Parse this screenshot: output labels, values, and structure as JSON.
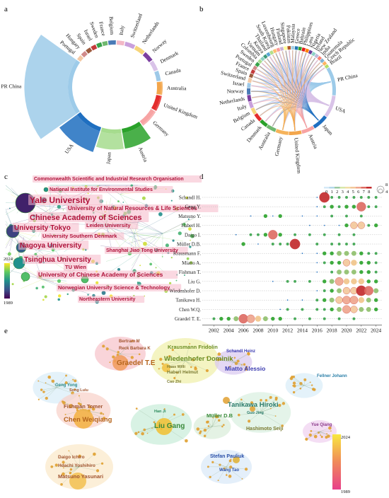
{
  "panels": {
    "a": {
      "letter": "a",
      "countries": [
        {
          "name": "Belgium",
          "color": "#4a7bb7",
          "w": 3
        },
        {
          "name": "Italy",
          "color": "#f2b8c6",
          "w": 3
        },
        {
          "name": "Switzerland",
          "color": "#c9a0dc",
          "w": 4
        },
        {
          "name": "Netherlands",
          "color": "#f6d57a",
          "w": 4
        },
        {
          "name": "Norway",
          "color": "#7b3fa0",
          "w": 4
        },
        {
          "name": "Denmark",
          "color": "#d9c3e8",
          "w": 4
        },
        {
          "name": "Canada",
          "color": "#9ec9e8",
          "w": 4
        },
        {
          "name": "Australia",
          "color": "#f3a64b",
          "w": 5
        },
        {
          "name": "United Kingdom",
          "color": "#e42d2d",
          "w": 6
        },
        {
          "name": "Germany",
          "color": "#f7a3a3",
          "w": 7
        },
        {
          "name": "Austria",
          "color": "#2aa22a",
          "w": 8
        },
        {
          "name": "Japan",
          "color": "#a6dc8e",
          "w": 8
        },
        {
          "name": "USA",
          "color": "#1f6fc0",
          "w": 11
        },
        {
          "name": "PR China",
          "color": "#9dcbe9",
          "w": 22
        },
        {
          "name": "Portugal",
          "color": "#f3c9a5",
          "w": 2
        },
        {
          "name": "Hungary",
          "color": "#d18a8a",
          "w": 2
        },
        {
          "name": "Spain",
          "color": "#9c5a3c",
          "w": 2
        },
        {
          "name": "Israel",
          "color": "#c43b3b",
          "w": 2
        },
        {
          "name": "Sweden",
          "color": "#37a24a",
          "w": 2
        },
        {
          "name": "France",
          "color": "#6fb86f",
          "w": 2
        }
      ]
    },
    "b": {
      "letter": "b",
      "countries": [
        {
          "name": "PR China",
          "color": "#9dcbe9",
          "w": 9
        },
        {
          "name": "USA",
          "color": "#d9c3e8",
          "w": 7
        },
        {
          "name": "Japan",
          "color": "#1f6fc0",
          "w": 5
        },
        {
          "name": "Austria",
          "color": "#f7a3a3",
          "w": 4
        },
        {
          "name": "United Kingdom",
          "color": "#f3a64b",
          "w": 4
        },
        {
          "name": "Germany",
          "color": "#f6b35a",
          "w": 4
        },
        {
          "name": "Australia",
          "color": "#6fb86f",
          "w": 3
        },
        {
          "name": "Denmark",
          "color": "#2aa22a",
          "w": 2.5
        },
        {
          "name": "Canada",
          "color": "#e42d2d",
          "w": 2.5
        },
        {
          "name": "Belgium",
          "color": "#f6d57a",
          "w": 2
        },
        {
          "name": "Italy",
          "color": "#c9a0dc",
          "w": 2
        },
        {
          "name": "Netherlands",
          "color": "#7b3fa0",
          "w": 2
        },
        {
          "name": "Norway",
          "color": "#4a7bb7",
          "w": 2
        },
        {
          "name": "Israel",
          "color": "#9ec9e8",
          "w": 1.5
        },
        {
          "name": "Switzerland",
          "color": "#f3c9a5",
          "w": 1.5
        },
        {
          "name": "Spain",
          "color": "#9c5a3c",
          "w": 1.2
        },
        {
          "name": "France",
          "color": "#c43b3b",
          "w": 1.2
        },
        {
          "name": "Portugal",
          "color": "#d18a8a",
          "w": 1.2
        },
        {
          "name": "Sweden",
          "color": "#37a24a",
          "w": 1.2
        },
        {
          "name": "Colombia",
          "color": "#a6dc8e",
          "w": 1
        },
        {
          "name": "Vietnam",
          "color": "#8fd0c4",
          "w": 1
        },
        {
          "name": "Kenya",
          "color": "#3a9a7a",
          "w": 1
        },
        {
          "name": "Thailand",
          "color": "#5aa6d6",
          "w": 1
        },
        {
          "name": "South Korea",
          "color": "#b2df8a",
          "w": 1
        },
        {
          "name": "Luxembourg",
          "color": "#fdbf6f",
          "w": 1
        },
        {
          "name": "Hungary",
          "color": "#fb9a99",
          "w": 1
        },
        {
          "name": "Finland",
          "color": "#cab2d6",
          "w": 1
        },
        {
          "name": "Singapore",
          "color": "#ffff99",
          "w": 1
        },
        {
          "name": "Pakistan",
          "color": "#b15928",
          "w": 1
        },
        {
          "name": "Malaysia",
          "color": "#a6cee3",
          "w": 1
        },
        {
          "name": "Greece",
          "color": "#1f78b4",
          "w": 1
        },
        {
          "name": "Bahrain",
          "color": "#33a02c",
          "w": 1
        },
        {
          "name": "Philippines",
          "color": "#e31a1c",
          "w": 1
        },
        {
          "name": "Laos",
          "color": "#ff7f00",
          "w": 1
        },
        {
          "name": "Nigeria",
          "color": "#6a3d9a",
          "w": 1
        },
        {
          "name": "Ireland",
          "color": "#8dd3c7",
          "w": 1
        },
        {
          "name": "New Zealand",
          "color": "#bebada",
          "w": 1
        },
        {
          "name": "India",
          "color": "#fb8072",
          "w": 1
        },
        {
          "name": "Guatemala",
          "color": "#80b1d3",
          "w": 1
        },
        {
          "name": "Czech Republic",
          "color": "#fdb462",
          "w": 1
        },
        {
          "name": "Brazil",
          "color": "#b3de69",
          "w": 1
        }
      ]
    },
    "c": {
      "letter": "c",
      "legend": {
        "top": "2024",
        "bottom": "1989"
      },
      "labels": [
        {
          "text": "Commonwealth Scientific and Industrial Research Organisation",
          "size": 7
        },
        {
          "text": "National Institute for Environmental Studies",
          "size": 7
        },
        {
          "text": "Yale University",
          "size": 12
        },
        {
          "text": "University of Natural Resources & Life Sciences",
          "size": 8
        },
        {
          "text": "Chinese Academy of Sciences",
          "size": 11
        },
        {
          "text": "Leiden University",
          "size": 7.5
        },
        {
          "text": "University Tokyo",
          "size": 10
        },
        {
          "text": "University Southern Denmark",
          "size": 7.5
        },
        {
          "text": "Nagoya University",
          "size": 10
        },
        {
          "text": "Shanghai Jiao Tong University",
          "size": 7
        },
        {
          "text": "Tsinghua University",
          "size": 10
        },
        {
          "text": "TU Wien",
          "size": 7.5
        },
        {
          "text": "University of Chinese Academy of Sciences",
          "size": 8.5
        },
        {
          "text": "Norwegian University Science & Technology",
          "size": 7.5
        },
        {
          "text": "Northeastern University",
          "size": 7
        }
      ]
    },
    "d": {
      "letter": "d",
      "authors": [
        "Schandl H.",
        "Geng Y.",
        "Matsuno Y.",
        "Haberl H.",
        "Daigo I.",
        "Müller D.B.",
        "Krausmann F.",
        "Miatto A.",
        "Fishman T.",
        "Liu G.",
        "Wiedenhofer D.",
        "Tanikawa H.",
        "Chen W.Q.",
        "Graedel T. E."
      ],
      "years": [
        "2002",
        "2004",
        "2006",
        "2008",
        "2010",
        "2012",
        "2014",
        "2016",
        "2018",
        "2020",
        "2022",
        "2024"
      ],
      "legend_values": [
        "0",
        "1",
        "2",
        "3",
        "4",
        "5",
        "6",
        "7",
        "8"
      ],
      "size_legend": [
        "8",
        "4"
      ],
      "bubbles": [
        [
          [
            2016,
            0.5
          ],
          [
            2017,
            8
          ],
          [
            2018,
            1
          ],
          [
            2019,
            1
          ],
          [
            2020,
            1
          ],
          [
            2021,
            1
          ],
          [
            2022,
            1
          ],
          [
            2023,
            1
          ],
          [
            2024,
            1
          ]
        ],
        [
          [
            2016,
            0.5
          ],
          [
            2017,
            1
          ],
          [
            2018,
            2
          ],
          [
            2019,
            1
          ],
          [
            2020,
            2
          ],
          [
            2021,
            2
          ],
          [
            2022,
            7
          ],
          [
            2023,
            1
          ],
          [
            2024,
            1
          ]
        ],
        [
          [
            2007,
            0.5
          ],
          [
            2009,
            2
          ],
          [
            2010,
            0.5
          ],
          [
            2011,
            2
          ],
          [
            2014,
            0.5
          ],
          [
            2016,
            0.5
          ],
          [
            2018,
            1
          ],
          [
            2020,
            1
          ],
          [
            2022,
            1
          ]
        ],
        [
          [
            2015,
            0.5
          ],
          [
            2017,
            0.5
          ],
          [
            2019,
            0.5
          ],
          [
            2020,
            2
          ],
          [
            2021,
            5
          ],
          [
            2022,
            5
          ],
          [
            2023,
            1
          ],
          [
            2024,
            2
          ]
        ],
        [
          [
            2005,
            0.5
          ],
          [
            2007,
            1
          ],
          [
            2008,
            1
          ],
          [
            2009,
            2
          ],
          [
            2010,
            7
          ],
          [
            2011,
            2
          ],
          [
            2013,
            1
          ],
          [
            2015,
            1
          ],
          [
            2017,
            1
          ],
          [
            2019,
            1
          ],
          [
            2021,
            1
          ]
        ],
        [
          [
            2006,
            2
          ],
          [
            2008,
            0.5
          ],
          [
            2010,
            1
          ],
          [
            2011,
            1
          ],
          [
            2012,
            1
          ],
          [
            2013,
            8
          ],
          [
            2016,
            1
          ],
          [
            2018,
            1
          ],
          [
            2019,
            1
          ],
          [
            2020,
            1
          ],
          [
            2021,
            1
          ]
        ],
        [
          [
            2014,
            0.5
          ],
          [
            2016,
            0.5
          ],
          [
            2017,
            2
          ],
          [
            2018,
            2
          ],
          [
            2019,
            3
          ],
          [
            2020,
            3
          ],
          [
            2021,
            3
          ],
          [
            2022,
            2
          ],
          [
            2023,
            1
          ],
          [
            2024,
            1
          ]
        ],
        [
          [
            2016,
            0.5
          ],
          [
            2017,
            1
          ],
          [
            2018,
            2
          ],
          [
            2019,
            2
          ],
          [
            2020,
            5
          ],
          [
            2021,
            4
          ],
          [
            2022,
            2
          ],
          [
            2023,
            2
          ],
          [
            2024,
            1
          ]
        ],
        [
          [
            2016,
            0.5
          ],
          [
            2018,
            1
          ],
          [
            2019,
            3
          ],
          [
            2020,
            3
          ],
          [
            2021,
            3
          ],
          [
            2022,
            2
          ],
          [
            2023,
            2
          ],
          [
            2024,
            1
          ]
        ],
        [
          [
            2010,
            0.5
          ],
          [
            2012,
            1
          ],
          [
            2013,
            1
          ],
          [
            2015,
            1
          ],
          [
            2017,
            2
          ],
          [
            2018,
            3
          ],
          [
            2019,
            6
          ],
          [
            2020,
            4
          ],
          [
            2021,
            4
          ],
          [
            2022,
            4
          ],
          [
            2023,
            2
          ],
          [
            2024,
            2
          ]
        ],
        [
          [
            2016,
            0.5
          ],
          [
            2017,
            1
          ],
          [
            2018,
            2
          ],
          [
            2019,
            3
          ],
          [
            2020,
            5
          ],
          [
            2021,
            5
          ],
          [
            2022,
            8
          ],
          [
            2023,
            7
          ],
          [
            2024,
            3
          ]
        ],
        [
          [
            2012,
            0.5
          ],
          [
            2014,
            0.5
          ],
          [
            2016,
            1
          ],
          [
            2017,
            2
          ],
          [
            2018,
            3
          ],
          [
            2019,
            5
          ],
          [
            2020,
            6
          ],
          [
            2021,
            6
          ],
          [
            2022,
            4
          ],
          [
            2023,
            3
          ],
          [
            2024,
            2
          ]
        ],
        [
          [
            2011,
            0.5
          ],
          [
            2012,
            1
          ],
          [
            2014,
            1
          ],
          [
            2016,
            1
          ],
          [
            2017,
            1
          ],
          [
            2018,
            2
          ],
          [
            2019,
            3
          ],
          [
            2020,
            6
          ],
          [
            2021,
            5
          ],
          [
            2022,
            3
          ],
          [
            2023,
            3
          ],
          [
            2024,
            2
          ]
        ],
        [
          [
            2002,
            1
          ],
          [
            2003,
            2
          ],
          [
            2004,
            2
          ],
          [
            2005,
            3
          ],
          [
            2006,
            7
          ],
          [
            2007,
            6
          ],
          [
            2008,
            4
          ],
          [
            2009,
            3
          ],
          [
            2010,
            2
          ],
          [
            2011,
            2
          ],
          [
            2013,
            1
          ],
          [
            2015,
            1
          ],
          [
            2017,
            1
          ],
          [
            2019,
            1
          ],
          [
            2021,
            1
          ]
        ]
      ]
    },
    "e": {
      "letter": "e",
      "legend": {
        "top": "2024",
        "bottom": "1989"
      },
      "labels": [
        {
          "text": "Bertram M",
          "color": "#a0522d",
          "size": 6
        },
        {
          "text": "Reck Barbara K",
          "color": "#a0522d",
          "size": 6
        },
        {
          "text": "Graedel T.E",
          "color": "#b5651d",
          "size": 10
        },
        {
          "text": "Krausmann Fridolin",
          "color": "#6b8e23",
          "size": 7.5
        },
        {
          "text": "Wiedenhofer Dominik",
          "color": "#6b8e23",
          "size": 9.5
        },
        {
          "text": "Haas Willi",
          "color": "#7a7a30",
          "size": 5.5
        },
        {
          "text": "Haberl Helmut",
          "color": "#7a7a30",
          "size": 6.5
        },
        {
          "text": "Cao Zhi",
          "color": "#7a7a30",
          "size": 5.5
        },
        {
          "text": "Schandl Heinz",
          "color": "#3b3bb0",
          "size": 6
        },
        {
          "text": "Miatto Alessio",
          "color": "#3b3bb0",
          "size": 8.5
        },
        {
          "text": "Fellner Johann",
          "color": "#2a7fa8",
          "size": 6
        },
        {
          "text": "Geng Yong",
          "color": "#2a8a8a",
          "size": 6
        },
        {
          "text": "Song Lulu",
          "color": "#a0522d",
          "size": 5.5
        },
        {
          "text": "Fishman Tomer",
          "color": "#a0522d",
          "size": 7.5
        },
        {
          "text": "Chen Weiqiang",
          "color": "#b5651d",
          "size": 9.5
        },
        {
          "text": "Han Ji",
          "color": "#2a8a5a",
          "size": 5.5
        },
        {
          "text": "Liu Gang",
          "color": "#3a8a3a",
          "size": 10
        },
        {
          "text": "Müller D.B",
          "color": "#3a8a3a",
          "size": 7.5
        },
        {
          "text": "Tanikawa Hiroki",
          "color": "#2a7a6a",
          "size": 9.5
        },
        {
          "text": "Guo Jing",
          "color": "#2a7a6a",
          "size": 5.5
        },
        {
          "text": "Hashimoto Seiji",
          "color": "#7a7a30",
          "size": 7
        },
        {
          "text": "Yue Qiang",
          "color": "#8a3a8a",
          "size": 6
        },
        {
          "text": "Daigo Ichiro",
          "color": "#a0522d",
          "size": 6.5
        },
        {
          "text": "Hdachi Yoshihiro",
          "color": "#a0522d",
          "size": 6.5
        },
        {
          "text": "Matsuno Yasunari",
          "color": "#a0522d",
          "size": 7.5
        },
        {
          "text": "Stefan Pauliuk",
          "color": "#2a4fa8",
          "size": 7
        },
        {
          "text": "Wang Tao",
          "color": "#2a4fa8",
          "size": 6
        }
      ]
    }
  }
}
